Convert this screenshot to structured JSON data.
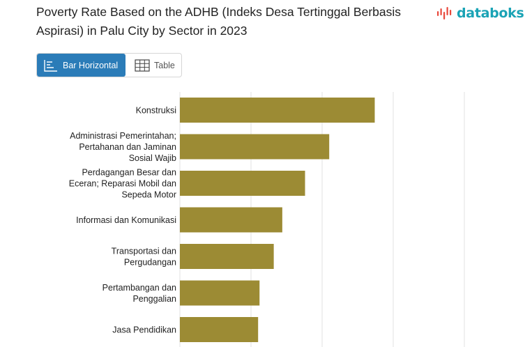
{
  "header": {
    "title": "Poverty Rate Based on the ADHB (Indeks Desa Tertinggal Berbasis Aspirasi) in Palu City by Sector in 2023",
    "brand": "databoks"
  },
  "view_toggle": {
    "bar_label": "Bar Horizontal",
    "table_label": "Table"
  },
  "colors": {
    "bar": "#9c8b34",
    "grid": "#e2e2e2",
    "toggle_active": "#2b7cb8",
    "brand": "#1aa3b5"
  },
  "chart_data": {
    "type": "bar",
    "orientation": "horizontal",
    "title": "Poverty Rate Based on the ADHB (Indeks Desa Tertinggal Berbasis Aspirasi) in Palu City by Sector in 2023",
    "categories": [
      [
        "Konstruksi"
      ],
      [
        "Administrasi Pemerintahan;",
        "Pertahanan dan Jaminan",
        "Sosial Wajib"
      ],
      [
        "Perdagangan Besar dan",
        "Eceran; Reparasi Mobil dan",
        "Sepeda Motor"
      ],
      [
        "Informasi dan Komunikasi"
      ],
      [
        "Transportasi dan",
        "Pergudangan"
      ],
      [
        "Pertambangan dan",
        "Penggalian"
      ],
      [
        "Jasa Pendidikan"
      ]
    ],
    "values": [
      13.7,
      10.5,
      8.8,
      7.2,
      6.6,
      5.6,
      5.5
    ],
    "xlim": [
      0,
      20
    ],
    "grid": true,
    "legend": "none"
  }
}
